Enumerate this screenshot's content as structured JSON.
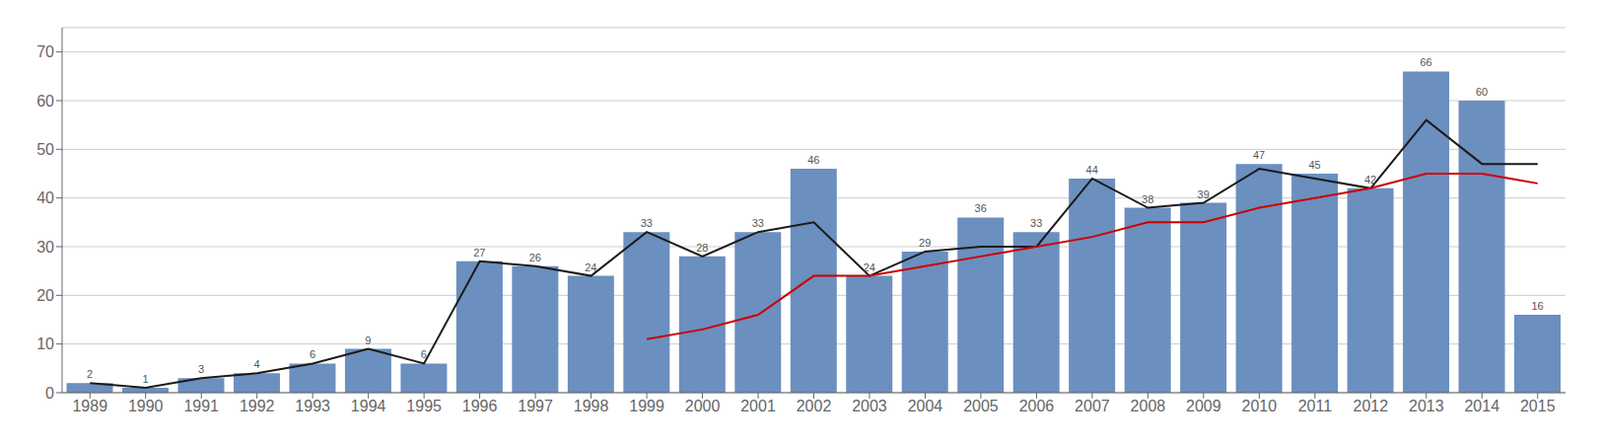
{
  "chart_data": {
    "type": "bar",
    "categories": [
      "1989",
      "1990",
      "1991",
      "1992",
      "1993",
      "1994",
      "1995",
      "1996",
      "1997",
      "1998",
      "1999",
      "2000",
      "2001",
      "2002",
      "2003",
      "2004",
      "2005",
      "2006",
      "2007",
      "2008",
      "2009",
      "2010",
      "2011",
      "2012",
      "2013",
      "2014",
      "2015"
    ],
    "series": [
      {
        "type": "bar",
        "color": "#6b8fbf",
        "data_labels": true,
        "values": [
          2,
          1,
          3,
          4,
          6,
          9,
          6,
          27,
          26,
          24,
          33,
          28,
          33,
          46,
          24,
          29,
          36,
          33,
          44,
          38,
          39,
          47,
          45,
          42,
          66,
          60,
          16
        ]
      },
      {
        "type": "line",
        "color": "#1a1a1a",
        "values": [
          2,
          1,
          3,
          4,
          6,
          9,
          6,
          27,
          26,
          24,
          33,
          28,
          33,
          35,
          24,
          29,
          30,
          30,
          44,
          38,
          39,
          46,
          44,
          42,
          56,
          47,
          47
        ]
      },
      {
        "type": "line",
        "color": "#cc0000",
        "values": [
          null,
          null,
          null,
          null,
          null,
          null,
          null,
          null,
          null,
          null,
          11,
          13,
          16,
          24,
          24,
          26,
          28,
          30,
          32,
          35,
          35,
          38,
          40,
          42,
          45,
          45,
          43
        ]
      }
    ],
    "ylim": [
      0,
      75
    ],
    "yticks": [
      0,
      10,
      20,
      30,
      40,
      50,
      60,
      70
    ],
    "grid": true
  }
}
